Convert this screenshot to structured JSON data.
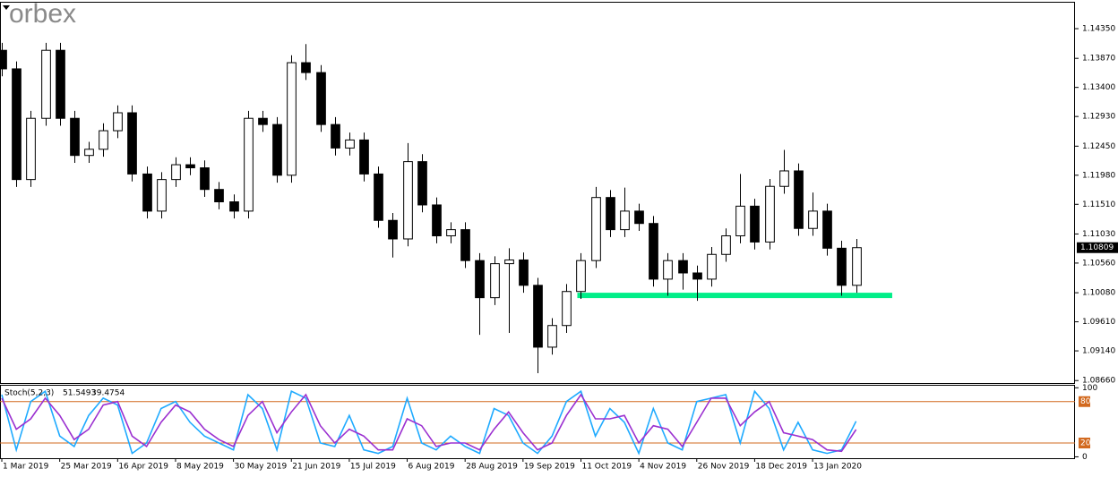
{
  "logo": "orbex",
  "chart_data": [
    {
      "type": "candlestick",
      "x": [
        0,
        4,
        8,
        12,
        16,
        20,
        24,
        28,
        32,
        36,
        40,
        44,
        48,
        52,
        56,
        60,
        64,
        68,
        72,
        76,
        80,
        84,
        88,
        92,
        96,
        100,
        104,
        108,
        112,
        116,
        120,
        124,
        128,
        132,
        136,
        140,
        144,
        148,
        152,
        156,
        160,
        164,
        168,
        172,
        176,
        180,
        184,
        188,
        192,
        196,
        200,
        204,
        208,
        212,
        216,
        220,
        224,
        228,
        232,
        236
      ],
      "open": [
        1.14,
        1.137,
        1.1191,
        1.129,
        1.14,
        1.129,
        1.123,
        1.124,
        1.127,
        1.1299,
        1.12,
        1.114,
        1.1191,
        1.1215,
        1.121,
        1.1175,
        1.1155,
        1.114,
        1.129,
        1.128,
        1.1198,
        1.138,
        1.1364,
        1.128,
        1.1242,
        1.1255,
        1.12,
        1.1125,
        1.1095,
        1.122,
        1.115,
        1.11,
        1.111,
        1.106,
        1.1,
        1.1055,
        1.1061,
        1.102,
        1.092,
        1.0955,
        1.101,
        1.106,
        1.1162,
        1.111,
        1.114,
        1.112,
        1.103,
        1.106,
        1.104,
        1.103,
        1.107,
        1.11,
        1.1148,
        1.109,
        1.118,
        1.1205,
        1.1112,
        1.114,
        1.108,
        1.102
      ],
      "high": [
        1.1412,
        1.1382,
        1.1302,
        1.1412,
        1.1412,
        1.1302,
        1.1252,
        1.1282,
        1.1311,
        1.1311,
        1.1212,
        1.1203,
        1.1227,
        1.1227,
        1.1222,
        1.1187,
        1.1167,
        1.1302,
        1.1302,
        1.1292,
        1.1392,
        1.141,
        1.1376,
        1.1292,
        1.1267,
        1.1267,
        1.1212,
        1.1137,
        1.125,
        1.1232,
        1.1162,
        1.1122,
        1.1122,
        1.1072,
        1.1067,
        1.108,
        1.1073,
        1.1032,
        1.0967,
        1.1022,
        1.1072,
        1.1179,
        1.1174,
        1.1178,
        1.1152,
        1.1132,
        1.1072,
        1.1072,
        1.1052,
        1.1082,
        1.1112,
        1.12,
        1.116,
        1.1192,
        1.1239,
        1.1217,
        1.117,
        1.1152,
        1.1092,
        1.1095
      ],
      "low": [
        1.1358,
        1.1179,
        1.1179,
        1.1278,
        1.1278,
        1.1218,
        1.1218,
        1.1228,
        1.1258,
        1.1188,
        1.1128,
        1.1128,
        1.1179,
        1.1198,
        1.1163,
        1.1143,
        1.1128,
        1.1128,
        1.1268,
        1.1186,
        1.1186,
        1.1352,
        1.1268,
        1.123,
        1.123,
        1.1188,
        1.1113,
        1.1065,
        1.1083,
        1.1138,
        1.1088,
        1.1088,
        1.1048,
        1.094,
        1.0988,
        1.0943,
        1.1008,
        1.0878,
        1.0908,
        1.0943,
        1.0998,
        1.1048,
        1.1098,
        1.1098,
        1.1108,
        1.1018,
        1.1003,
        1.1013,
        1.0995,
        1.1018,
        1.1058,
        1.1088,
        1.1078,
        1.1078,
        1.1168,
        1.11,
        1.11,
        1.1068,
        1.1003,
        1.1008
      ],
      "close": [
        1.137,
        1.1191,
        1.129,
        1.14,
        1.129,
        1.123,
        1.124,
        1.127,
        1.1299,
        1.12,
        1.114,
        1.1191,
        1.1215,
        1.121,
        1.1175,
        1.1155,
        1.114,
        1.129,
        1.128,
        1.1198,
        1.138,
        1.1364,
        1.128,
        1.1242,
        1.1255,
        1.12,
        1.1125,
        1.1095,
        1.122,
        1.115,
        1.11,
        1.111,
        1.106,
        1.1,
        1.1055,
        1.1061,
        1.102,
        1.092,
        1.0955,
        1.101,
        1.106,
        1.1162,
        1.111,
        1.114,
        1.112,
        1.103,
        1.106,
        1.104,
        1.103,
        1.107,
        1.11,
        1.1148,
        1.109,
        1.118,
        1.1205,
        1.1112,
        1.114,
        1.108,
        1.102,
        1.10809
      ],
      "up_color": "#ffffff",
      "down_color": "#000000",
      "xlim": [
        -0.5,
        296.5
      ],
      "ylim": [
        1.0862,
        1.1477
      ],
      "yticks": [
        {
          "value": 1.1435,
          "label": "1.14350"
        },
        {
          "value": 1.1387,
          "label": "1.13870"
        },
        {
          "value": 1.134,
          "label": "1.13400"
        },
        {
          "value": 1.1293,
          "label": "1.12930"
        },
        {
          "value": 1.1245,
          "label": "1.12450"
        },
        {
          "value": 1.1198,
          "label": "1.11980"
        },
        {
          "value": 1.1151,
          "label": "1.11510"
        },
        {
          "value": 1.1103,
          "label": "1.11030"
        },
        {
          "value": 1.1056,
          "label": "1.10560"
        },
        {
          "value": 1.1008,
          "label": "1.10080"
        },
        {
          "value": 1.0961,
          "label": "1.09610"
        },
        {
          "value": 1.0914,
          "label": "1.09140"
        },
        {
          "value": 1.0866,
          "label": "1.08660"
        }
      ],
      "current_price": 1.10809,
      "zone": {
        "low": 1.1,
        "high": 1.1008,
        "x": [
          159,
          246
        ],
        "color": "#00ee88"
      }
    },
    {
      "type": "line",
      "title": "Stoch(5,2,3)",
      "x": [
        0,
        4,
        8,
        12,
        16,
        20,
        24,
        28,
        32,
        36,
        40,
        44,
        48,
        52,
        56,
        60,
        64,
        68,
        72,
        76,
        80,
        84,
        88,
        92,
        96,
        100,
        104,
        108,
        112,
        116,
        120,
        124,
        128,
        132,
        136,
        140,
        144,
        148,
        152,
        156,
        160,
        164,
        168,
        172,
        176,
        180,
        184,
        188,
        192,
        196,
        200,
        204,
        208,
        212,
        216,
        220,
        224,
        228,
        232,
        236
      ],
      "series": [
        {
          "color": "#1eaaff",
          "values": [
            90,
            10,
            80,
            95,
            30,
            15,
            60,
            85,
            75,
            5,
            20,
            70,
            80,
            50,
            30,
            20,
            10,
            90,
            70,
            10,
            95,
            85,
            20,
            15,
            60,
            10,
            5,
            15,
            85,
            20,
            10,
            30,
            15,
            5,
            70,
            60,
            20,
            5,
            30,
            80,
            95,
            30,
            70,
            50,
            5,
            70,
            20,
            10,
            80,
            85,
            90,
            20,
            95,
            70,
            10,
            50,
            10,
            5,
            10,
            51.5493
          ]
        },
        {
          "color": "#9b30d0",
          "values": [
            85,
            40,
            55,
            85,
            60,
            25,
            40,
            75,
            80,
            30,
            15,
            50,
            75,
            65,
            40,
            25,
            15,
            60,
            80,
            35,
            65,
            90,
            45,
            20,
            40,
            30,
            10,
            10,
            55,
            45,
            15,
            20,
            20,
            10,
            40,
            65,
            35,
            10,
            20,
            60,
            90,
            55,
            55,
            60,
            20,
            45,
            40,
            15,
            50,
            85,
            85,
            45,
            65,
            80,
            35,
            30,
            25,
            10,
            8,
            39.4754
          ]
        }
      ],
      "xlim": [
        -0.5,
        296.5
      ],
      "ylim": [
        -2,
        103
      ],
      "yticks": [
        100,
        0
      ],
      "levels": [
        80,
        20
      ],
      "level_color": "#d2691e",
      "xticks": [
        {
          "value": 0,
          "label": "1 Mar 2019"
        },
        {
          "value": 16,
          "label": "25 Mar 2019"
        },
        {
          "value": 32,
          "label": "16 Apr 2019"
        },
        {
          "value": 48,
          "label": "8 May 2019"
        },
        {
          "value": 64,
          "label": "30 May 2019"
        },
        {
          "value": 80,
          "label": "21 Jun 2019"
        },
        {
          "value": 96,
          "label": "15 Jul 2019"
        },
        {
          "value": 112,
          "label": "6 Aug 2019"
        },
        {
          "value": 128,
          "label": "28 Aug 2019"
        },
        {
          "value": 144,
          "label": "19 Sep 2019"
        },
        {
          "value": 160,
          "label": "11 Oct 2019"
        },
        {
          "value": 176,
          "label": "4 Nov 2019"
        },
        {
          "value": 192,
          "label": "26 Nov 2019"
        },
        {
          "value": 208,
          "label": "18 Dec 2019"
        },
        {
          "value": 224,
          "label": "13 Jan 2020"
        }
      ]
    }
  ]
}
